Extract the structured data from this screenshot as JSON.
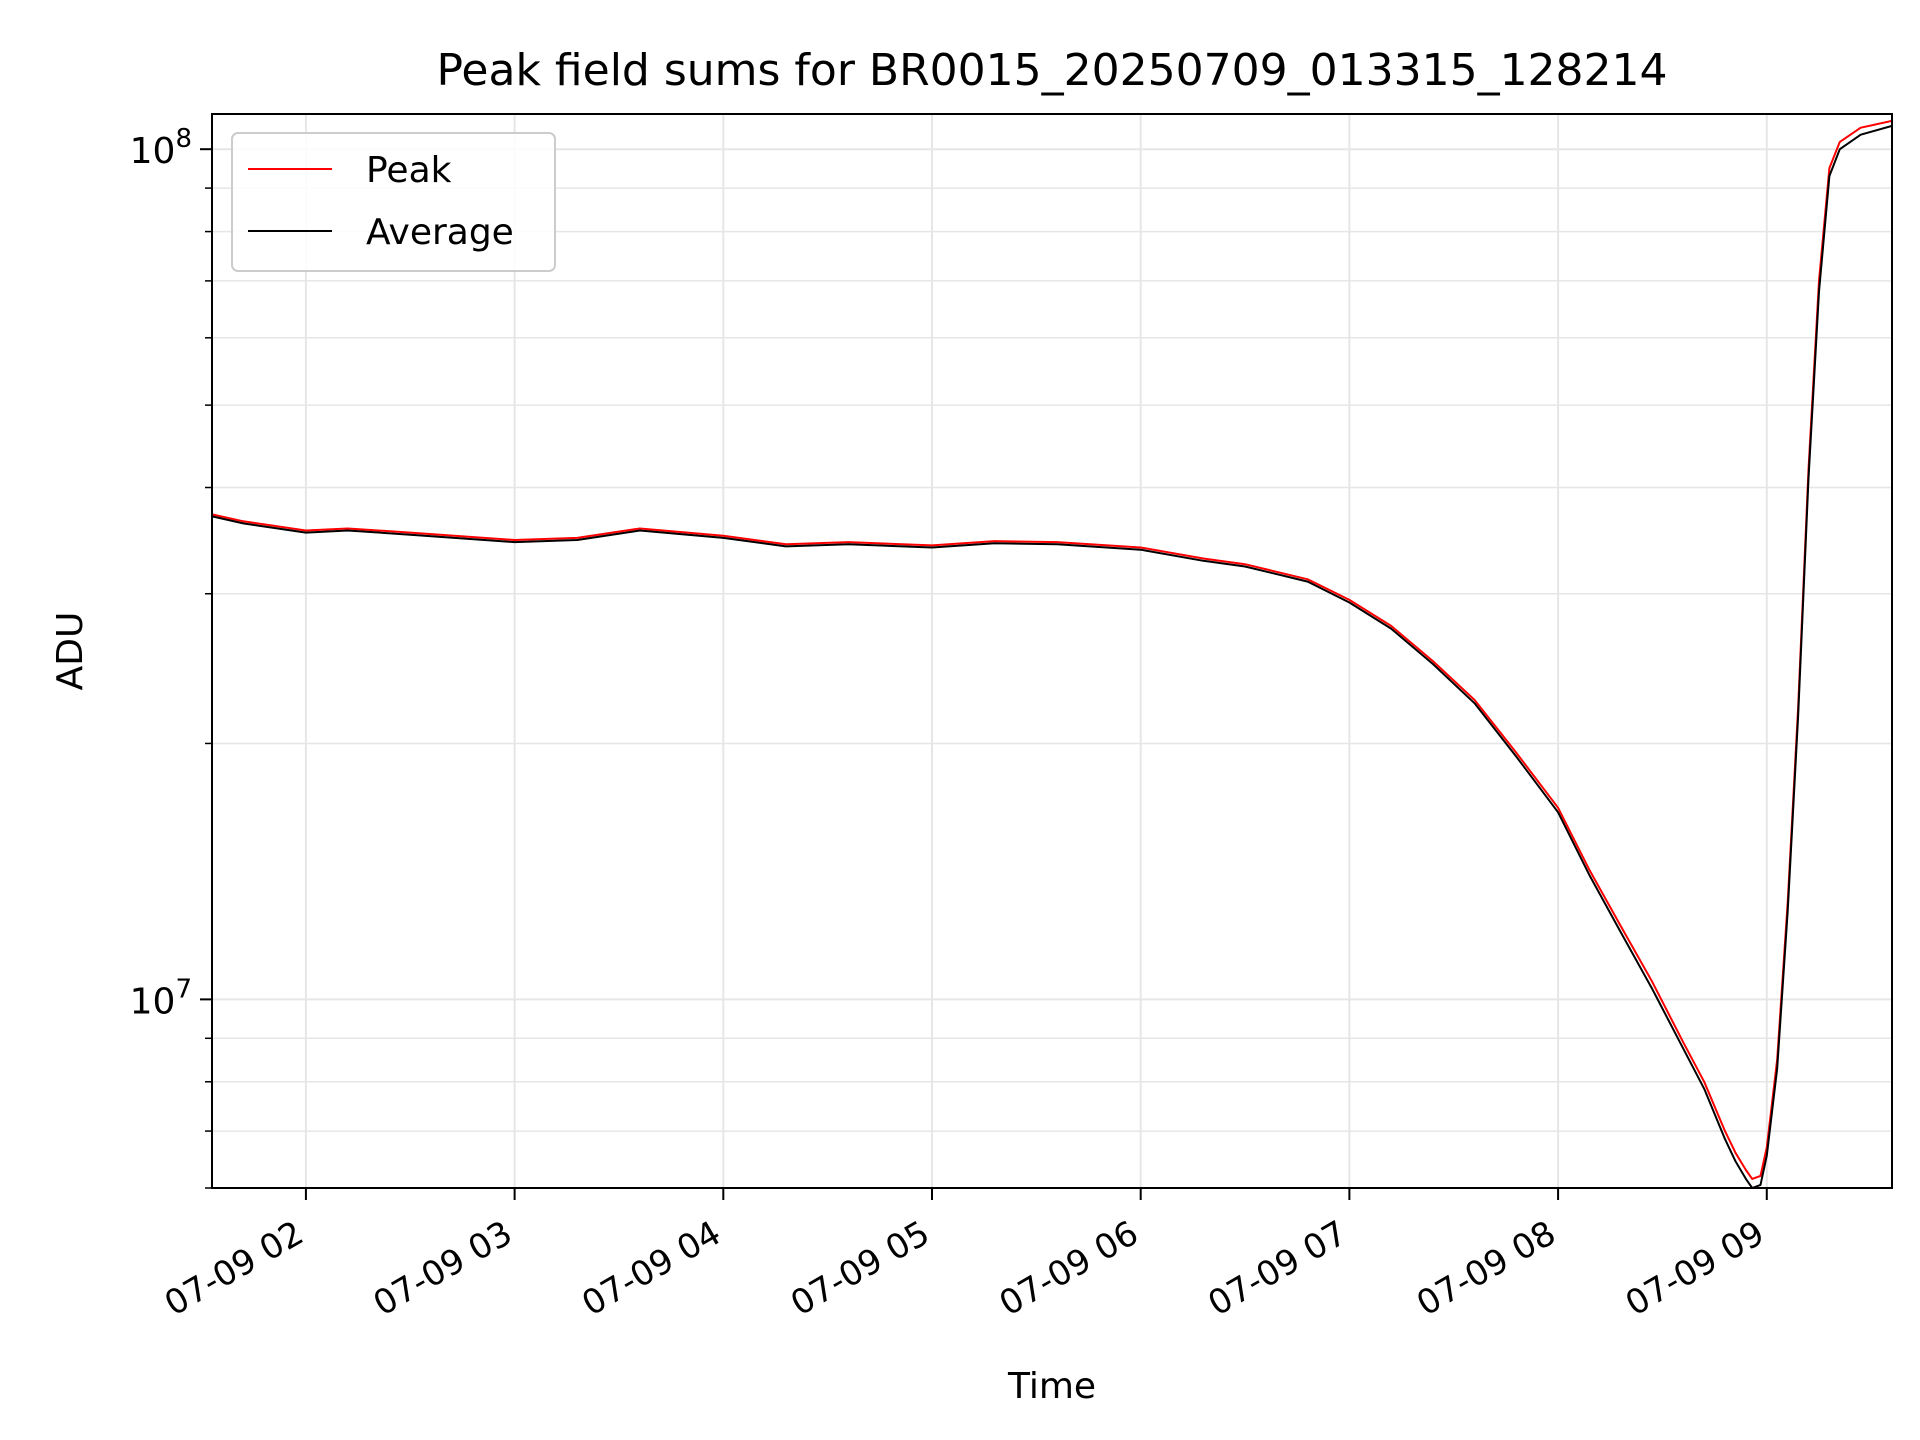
{
  "chart_data": {
    "type": "line",
    "title": "Peak field sums for BR0015_20250709_013315_128214",
    "xlabel": "Time",
    "ylabel": "ADU",
    "x_unit": "time of day (hours), 2025-07-09",
    "xlim": [
      1.55,
      9.6
    ],
    "ylim": [
      6000000,
      110000000
    ],
    "yscale": "log",
    "grid": true,
    "legend_position": "upper left",
    "x_ticks": [
      {
        "value": 2,
        "label": "07-09 02"
      },
      {
        "value": 3,
        "label": "07-09 03"
      },
      {
        "value": 4,
        "label": "07-09 04"
      },
      {
        "value": 5,
        "label": "07-09 05"
      },
      {
        "value": 6,
        "label": "07-09 06"
      },
      {
        "value": 7,
        "label": "07-09 07"
      },
      {
        "value": 8,
        "label": "07-09 08"
      },
      {
        "value": 9,
        "label": "07-09 09"
      }
    ],
    "y_ticks": [
      {
        "value": 10000000,
        "base": "10",
        "exp": "7"
      },
      {
        "value": 100000000,
        "base": "10",
        "exp": "8"
      }
    ],
    "series": [
      {
        "name": "Peak",
        "color": "#ff0000",
        "x": [
          1.55,
          1.7,
          2.0,
          2.2,
          2.5,
          3.0,
          3.3,
          3.6,
          4.0,
          4.3,
          4.6,
          5.0,
          5.3,
          5.6,
          6.0,
          6.3,
          6.5,
          6.8,
          7.0,
          7.2,
          7.4,
          7.6,
          7.8,
          8.0,
          8.15,
          8.3,
          8.45,
          8.6,
          8.7,
          8.8,
          8.85,
          8.9,
          8.93,
          8.97,
          9.0,
          9.05,
          9.1,
          9.15,
          9.2,
          9.25,
          9.3,
          9.35,
          9.45,
          9.6
        ],
        "y": [
          37200000,
          36500000,
          35600000,
          35800000,
          35400000,
          34700000,
          34900000,
          35800000,
          35100000,
          34300000,
          34500000,
          34200000,
          34600000,
          34500000,
          34000000,
          33000000,
          32500000,
          31200000,
          29500000,
          27500000,
          25000000,
          22500000,
          19500000,
          16800000,
          14200000,
          12200000,
          10500000,
          8900000,
          8000000,
          7000000,
          6600000,
          6300000,
          6150000,
          6200000,
          6700000,
          8500000,
          13000000,
          22000000,
          42000000,
          70000000,
          95000000,
          102000000,
          106000000,
          108000000
        ]
      },
      {
        "name": "Average",
        "color": "#000000",
        "x": [
          1.55,
          1.7,
          2.0,
          2.2,
          2.5,
          3.0,
          3.3,
          3.6,
          4.0,
          4.3,
          4.6,
          5.0,
          5.3,
          5.6,
          6.0,
          6.3,
          6.5,
          6.8,
          7.0,
          7.2,
          7.4,
          7.6,
          7.8,
          8.0,
          8.15,
          8.3,
          8.45,
          8.6,
          8.7,
          8.8,
          8.85,
          8.9,
          8.93,
          8.97,
          9.0,
          9.05,
          9.1,
          9.15,
          9.2,
          9.25,
          9.3,
          9.35,
          9.45,
          9.6
        ],
        "y": [
          37000000,
          36300000,
          35400000,
          35600000,
          35200000,
          34500000,
          34700000,
          35600000,
          34900000,
          34100000,
          34300000,
          34000000,
          34400000,
          34300000,
          33800000,
          32800000,
          32300000,
          31000000,
          29300000,
          27300000,
          24800000,
          22300000,
          19300000,
          16600000,
          14000000,
          12000000,
          10300000,
          8750000,
          7850000,
          6850000,
          6450000,
          6150000,
          6000000,
          6050000,
          6550000,
          8300000,
          12700000,
          21500000,
          41000000,
          68000000,
          93000000,
          100000000,
          104000000,
          106500000
        ]
      }
    ]
  }
}
